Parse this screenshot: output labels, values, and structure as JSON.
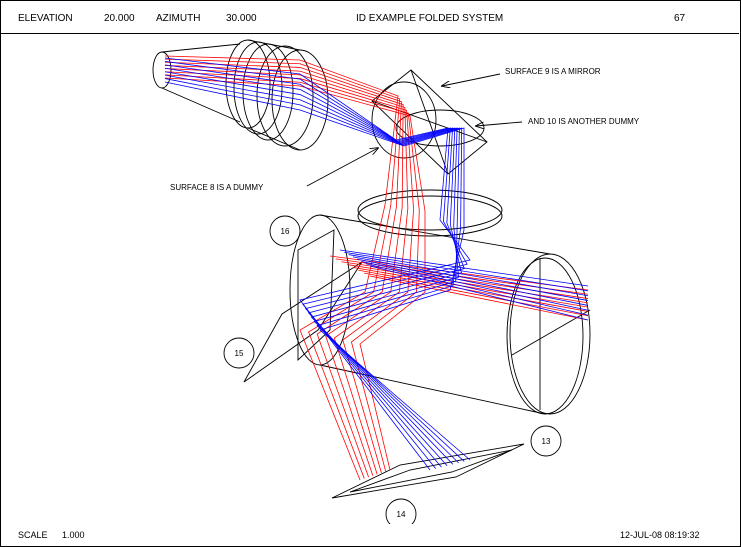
{
  "header": {
    "elevation_label": "ELEVATION",
    "elevation_value": "20.000",
    "azimuth_label": "AZIMUTH",
    "azimuth_value": "30.000",
    "title": "ID EXAMPLE FOLDED SYSTEM",
    "page_number": "67"
  },
  "annotations": {
    "mirror_note": "SURFACE 9 IS A MIRROR",
    "dummy10_note": "AND 10 IS ANOTHER DUMMY",
    "dummy8_note": "SURFACE 8 IS A DUMMY"
  },
  "surface_labels": {
    "s13": "13",
    "s14": "14",
    "s15": "15",
    "s16": "16"
  },
  "footer": {
    "scale_label": "SCALE",
    "scale_value": "1.000",
    "datetime": "12-JUL-08  08:19:32"
  },
  "colors": {
    "ray_red": "#ff0000",
    "ray_blue": "#0000ff",
    "outline": "#000000"
  }
}
